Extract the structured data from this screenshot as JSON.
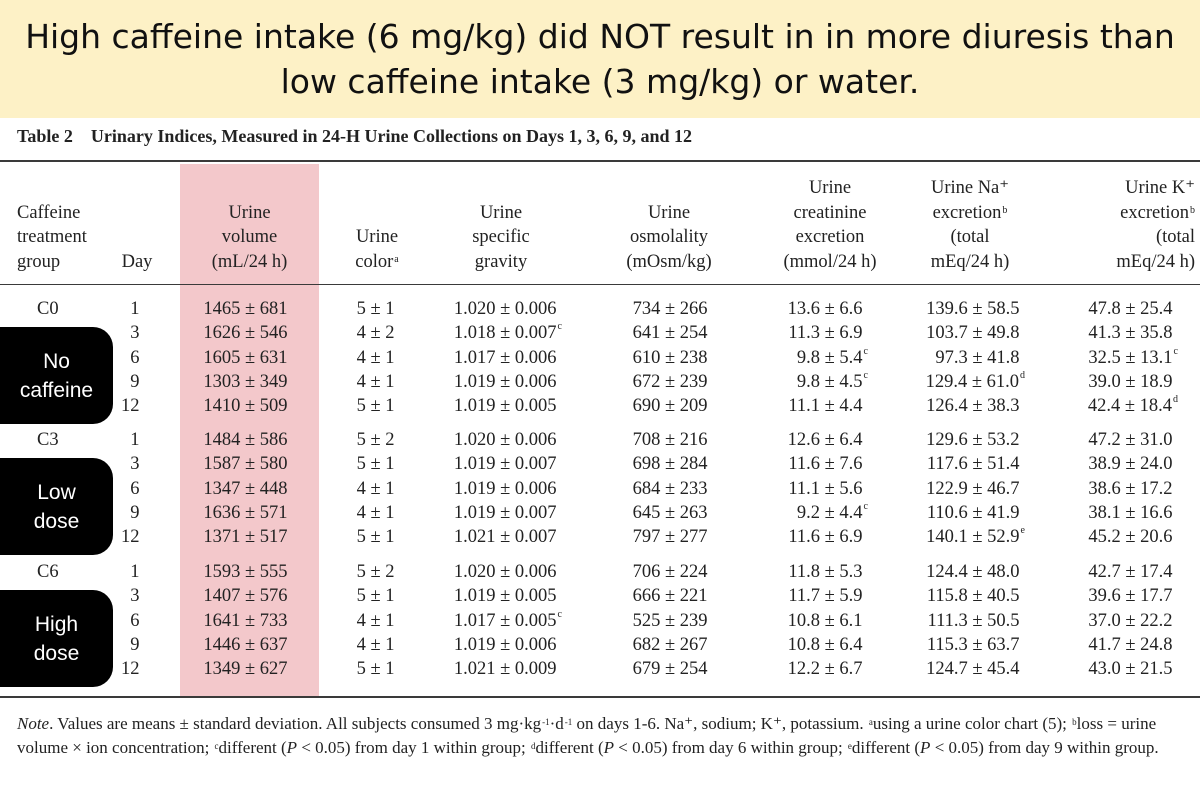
{
  "headline": {
    "line1": "High caffeine intake (6 mg/kg) did NOT result in in more diuresis than",
    "line2": "low caffeine intake (3 mg/kg) or water."
  },
  "table": {
    "label": "Table 2",
    "title": "Urinary Indices, Measured in 24-H Urine Collections on Days 1, 3, 6, 9, and 12",
    "headers": {
      "group": [
        "Caffeine",
        "treatment",
        "group"
      ],
      "day": [
        "Day"
      ],
      "volume": [
        "Urine",
        "volume",
        "(mL/24 h)"
      ],
      "color": [
        "Urine",
        "color"
      ],
      "color_sup": "a",
      "sg": [
        "Urine",
        "specific",
        "gravity"
      ],
      "osm": [
        "Urine",
        "osmolality",
        "(mOsm/kg)"
      ],
      "creat": [
        "Urine",
        "creatinine",
        "excretion",
        "(mmol/24 h)"
      ],
      "na": [
        "Urine Na⁺",
        "excretion",
        "(total",
        "mEq/24 h)"
      ],
      "na_sup": "b",
      "k": [
        "Urine K⁺",
        "excretion",
        "(total",
        "mEq/24 h)"
      ],
      "k_sup": "b"
    },
    "groups": [
      {
        "code": "C0",
        "badge": [
          "No",
          "caffeine"
        ],
        "rows": [
          {
            "day": "1",
            "volume": "1465 ± 681",
            "color": "5 ± 1",
            "sg": "1.020 ± 0.006",
            "sg_sup": "",
            "osm": "734 ± 266",
            "creat": "13.6 ± 6.6",
            "creat_sup": "",
            "na": "139.6 ± 58.5",
            "na_sup": "",
            "k": "47.8 ± 25.4",
            "k_sup": ""
          },
          {
            "day": "3",
            "volume": "1626 ± 546",
            "color": "4 ± 2",
            "sg": "1.018 ± 0.007",
            "sg_sup": "c",
            "osm": "641 ± 254",
            "creat": "11.3 ± 6.9",
            "creat_sup": "",
            "na": "103.7 ± 49.8",
            "na_sup": "",
            "k": "41.3 ± 35.8",
            "k_sup": ""
          },
          {
            "day": "6",
            "volume": "1605 ± 631",
            "color": "4 ± 1",
            "sg": "1.017 ± 0.006",
            "sg_sup": "",
            "osm": "610 ± 238",
            "creat": "9.8 ± 5.4",
            "creat_sup": "c",
            "na": "97.3 ± 41.8",
            "na_sup": "",
            "k": "32.5 ± 13.1",
            "k_sup": "c"
          },
          {
            "day": "9",
            "volume": "1303 ± 349",
            "color": "4 ± 1",
            "sg": "1.019 ± 0.006",
            "sg_sup": "",
            "osm": "672 ± 239",
            "creat": "9.8 ± 4.5",
            "creat_sup": "c",
            "na": "129.4 ± 61.0",
            "na_sup": "d",
            "k": "39.0 ± 18.9",
            "k_sup": ""
          },
          {
            "day": "12",
            "volume": "1410 ± 509",
            "color": "5 ± 1",
            "sg": "1.019 ± 0.005",
            "sg_sup": "",
            "osm": "690 ± 209",
            "creat": "11.1 ± 4.4",
            "creat_sup": "",
            "na": "126.4 ± 38.3",
            "na_sup": "",
            "k": "42.4 ± 18.4",
            "k_sup": "d"
          }
        ]
      },
      {
        "code": "C3",
        "badge": [
          "Low",
          "dose"
        ],
        "rows": [
          {
            "day": "1",
            "volume": "1484 ± 586",
            "color": "5 ± 2",
            "sg": "1.020 ± 0.006",
            "sg_sup": "",
            "osm": "708 ± 216",
            "creat": "12.6 ± 6.4",
            "creat_sup": "",
            "na": "129.6 ± 53.2",
            "na_sup": "",
            "k": "47.2 ± 31.0",
            "k_sup": ""
          },
          {
            "day": "3",
            "volume": "1587 ± 580",
            "color": "5 ± 1",
            "sg": "1.019 ± 0.007",
            "sg_sup": "",
            "osm": "698 ± 284",
            "creat": "11.6 ± 7.6",
            "creat_sup": "",
            "na": "117.6 ± 51.4",
            "na_sup": "",
            "k": "38.9 ± 24.0",
            "k_sup": ""
          },
          {
            "day": "6",
            "volume": "1347 ± 448",
            "color": "4 ± 1",
            "sg": "1.019 ± 0.006",
            "sg_sup": "",
            "osm": "684 ± 233",
            "creat": "11.1 ± 5.6",
            "creat_sup": "",
            "na": "122.9 ± 46.7",
            "na_sup": "",
            "k": "38.6 ± 17.2",
            "k_sup": ""
          },
          {
            "day": "9",
            "volume": "1636 ± 571",
            "color": "4 ± 1",
            "sg": "1.019 ± 0.007",
            "sg_sup": "",
            "osm": "645 ± 263",
            "creat": "9.2 ± 4.4",
            "creat_sup": "c",
            "na": "110.6 ± 41.9",
            "na_sup": "",
            "k": "38.1 ± 16.6",
            "k_sup": ""
          },
          {
            "day": "12",
            "volume": "1371 ± 517",
            "color": "5 ± 1",
            "sg": "1.021 ± 0.007",
            "sg_sup": "",
            "osm": "797 ± 277",
            "creat": "11.6 ± 6.9",
            "creat_sup": "",
            "na": "140.1 ± 52.9",
            "na_sup": "e",
            "k": "45.2 ± 20.6",
            "k_sup": ""
          }
        ]
      },
      {
        "code": "C6",
        "badge": [
          "High",
          "dose"
        ],
        "rows": [
          {
            "day": "1",
            "volume": "1593 ± 555",
            "color": "5 ± 2",
            "sg": "1.020 ± 0.006",
            "sg_sup": "",
            "osm": "706 ± 224",
            "creat": "11.8 ± 5.3",
            "creat_sup": "",
            "na": "124.4 ± 48.0",
            "na_sup": "",
            "k": "42.7 ± 17.4",
            "k_sup": ""
          },
          {
            "day": "3",
            "volume": "1407 ± 576",
            "color": "5 ± 1",
            "sg": "1.019 ± 0.005",
            "sg_sup": "",
            "osm": "666 ± 221",
            "creat": "11.7 ± 5.9",
            "creat_sup": "",
            "na": "115.8 ± 40.5",
            "na_sup": "",
            "k": "39.6 ± 17.7",
            "k_sup": ""
          },
          {
            "day": "6",
            "volume": "1641 ± 733",
            "color": "4 ± 1",
            "sg": "1.017 ± 0.005",
            "sg_sup": "c",
            "osm": "525 ± 239",
            "creat": "10.8 ± 6.1",
            "creat_sup": "",
            "na": "111.3 ± 50.5",
            "na_sup": "",
            "k": "37.0 ± 22.2",
            "k_sup": ""
          },
          {
            "day": "9",
            "volume": "1446 ± 637",
            "color": "4 ± 1",
            "sg": "1.019 ± 0.006",
            "sg_sup": "",
            "osm": "682 ± 267",
            "creat": "10.8 ± 6.4",
            "creat_sup": "",
            "na": "115.3 ± 63.7",
            "na_sup": "",
            "k": "41.7 ± 24.8",
            "k_sup": ""
          },
          {
            "day": "12",
            "volume": "1349 ± 627",
            "color": "5 ± 1",
            "sg": "1.021 ± 0.009",
            "sg_sup": "",
            "osm": "679 ± 254",
            "creat": "12.2 ± 6.7",
            "creat_sup": "",
            "na": "124.7 ± 45.4",
            "na_sup": "",
            "k": "43.0 ± 21.5",
            "k_sup": ""
          }
        ]
      }
    ],
    "note": [
      {
        "t": "i",
        "v": "Note"
      },
      {
        "t": "s",
        "v": ". Values are means ± standard deviation. All subjects consumed 3 mg·kg"
      },
      {
        "t": "sup",
        "v": "-1"
      },
      {
        "t": "s",
        "v": "·d"
      },
      {
        "t": "sup",
        "v": "-1"
      },
      {
        "t": "s",
        "v": " on days 1-6. Na⁺, sodium; K⁺, potassium. "
      },
      {
        "t": "sup",
        "v": "a"
      },
      {
        "t": "s",
        "v": "using a urine color chart (5); "
      },
      {
        "t": "sup",
        "v": "b"
      },
      {
        "t": "s",
        "v": "loss = urine volume × ion concentration; "
      },
      {
        "t": "sup",
        "v": "c"
      },
      {
        "t": "s",
        "v": "different ("
      },
      {
        "t": "i",
        "v": "P"
      },
      {
        "t": "s",
        "v": " < 0.05) from day 1 within group; "
      },
      {
        "t": "sup",
        "v": "d"
      },
      {
        "t": "s",
        "v": "different ("
      },
      {
        "t": "i",
        "v": "P"
      },
      {
        "t": "s",
        "v": " < 0.05) from day 6 within group; "
      },
      {
        "t": "sup",
        "v": "e"
      },
      {
        "t": "s",
        "v": "different ("
      },
      {
        "t": "i",
        "v": "P"
      },
      {
        "t": "s",
        "v": " < 0.05) from day 9 within group."
      }
    ]
  }
}
